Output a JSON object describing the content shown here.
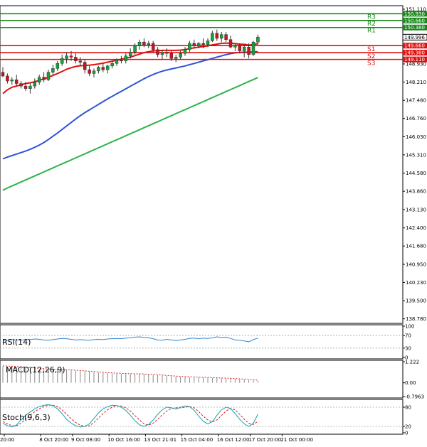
{
  "chart_data": [
    {
      "type": "candlestick",
      "title": "",
      "price_ticks": [
        "151.110",
        "150.380",
        "149.660",
        "148.930",
        "148.210",
        "147.480",
        "146.760",
        "146.030",
        "145.310",
        "144.580",
        "143.860",
        "143.130",
        "142.400",
        "141.680",
        "140.950",
        "140.230",
        "139.500",
        "138.780"
      ],
      "ylim": [
        138.6,
        151.25
      ],
      "current_price": "149.996",
      "x_tick_labels": [
        "20:00",
        "8 Oct 20:00",
        "9 Oct 08:00",
        "10 Oct 16:00",
        "13 Oct 21:01",
        "15 Oct 04:00",
        "16 Oct 12:00",
        "17 Oct 20:00",
        "21 Oct 00:00"
      ],
      "pivot_levels": [
        {
          "name": "R3",
          "value": 150.93,
          "label": "150.930",
          "color": "#1a8a1a"
        },
        {
          "name": "R2",
          "value": 150.66,
          "label": "150.660",
          "color": "#1a8a1a"
        },
        {
          "name": "R1",
          "value": 150.38,
          "label": "150.380",
          "color": "#1a8a1a"
        },
        {
          "name": "S1",
          "value": 149.66,
          "label": "149.660",
          "color": "#e01010"
        },
        {
          "name": "S2",
          "value": 149.38,
          "label": "149.380",
          "color": "#e01010"
        },
        {
          "name": "S3",
          "value": 149.11,
          "label": "149.110",
          "color": "#e01010"
        }
      ],
      "candles": [
        {
          "o": 148.6,
          "h": 148.8,
          "l": 148.4,
          "c": 148.45
        },
        {
          "o": 148.45,
          "h": 148.55,
          "l": 148.15,
          "c": 148.25
        },
        {
          "o": 148.25,
          "h": 148.4,
          "l": 148.1,
          "c": 148.3
        },
        {
          "o": 148.3,
          "h": 148.5,
          "l": 148.05,
          "c": 148.15
        },
        {
          "o": 148.15,
          "h": 148.25,
          "l": 147.95,
          "c": 148.05
        },
        {
          "o": 148.05,
          "h": 148.2,
          "l": 147.85,
          "c": 147.95
        },
        {
          "o": 147.95,
          "h": 148.15,
          "l": 147.75,
          "c": 148.05
        },
        {
          "o": 148.05,
          "h": 148.35,
          "l": 147.95,
          "c": 148.2
        },
        {
          "o": 148.2,
          "h": 148.5,
          "l": 148.1,
          "c": 148.4
        },
        {
          "o": 148.4,
          "h": 148.6,
          "l": 148.2,
          "c": 148.3
        },
        {
          "o": 148.3,
          "h": 148.7,
          "l": 148.25,
          "c": 148.6
        },
        {
          "o": 148.6,
          "h": 148.9,
          "l": 148.5,
          "c": 148.75
        },
        {
          "o": 148.75,
          "h": 149.05,
          "l": 148.65,
          "c": 148.95
        },
        {
          "o": 148.95,
          "h": 149.3,
          "l": 148.85,
          "c": 149.15
        },
        {
          "o": 149.15,
          "h": 149.4,
          "l": 148.95,
          "c": 149.25
        },
        {
          "o": 149.25,
          "h": 149.45,
          "l": 149.05,
          "c": 149.2
        },
        {
          "o": 149.2,
          "h": 149.35,
          "l": 148.95,
          "c": 149.05
        },
        {
          "o": 149.05,
          "h": 149.2,
          "l": 148.85,
          "c": 149.0
        },
        {
          "o": 149.0,
          "h": 149.1,
          "l": 148.55,
          "c": 148.7
        },
        {
          "o": 148.7,
          "h": 148.85,
          "l": 148.45,
          "c": 148.55
        },
        {
          "o": 148.55,
          "h": 148.75,
          "l": 148.4,
          "c": 148.65
        },
        {
          "o": 148.65,
          "h": 148.85,
          "l": 148.55,
          "c": 148.8
        },
        {
          "o": 148.8,
          "h": 148.95,
          "l": 148.6,
          "c": 148.7
        },
        {
          "o": 148.7,
          "h": 148.9,
          "l": 148.55,
          "c": 148.85
        },
        {
          "o": 148.85,
          "h": 149.05,
          "l": 148.75,
          "c": 148.95
        },
        {
          "o": 148.95,
          "h": 149.15,
          "l": 148.85,
          "c": 149.1
        },
        {
          "o": 149.1,
          "h": 149.25,
          "l": 148.95,
          "c": 149.05
        },
        {
          "o": 149.05,
          "h": 149.35,
          "l": 148.95,
          "c": 149.25
        },
        {
          "o": 149.25,
          "h": 149.55,
          "l": 149.15,
          "c": 149.4
        },
        {
          "o": 149.4,
          "h": 149.75,
          "l": 149.3,
          "c": 149.65
        },
        {
          "o": 149.65,
          "h": 149.9,
          "l": 149.5,
          "c": 149.8
        },
        {
          "o": 149.8,
          "h": 149.95,
          "l": 149.6,
          "c": 149.7
        },
        {
          "o": 149.7,
          "h": 149.85,
          "l": 149.55,
          "c": 149.75
        },
        {
          "o": 149.75,
          "h": 149.85,
          "l": 149.4,
          "c": 149.5
        },
        {
          "o": 149.5,
          "h": 149.6,
          "l": 149.2,
          "c": 149.3
        },
        {
          "o": 149.3,
          "h": 149.5,
          "l": 149.1,
          "c": 149.4
        },
        {
          "o": 149.4,
          "h": 149.55,
          "l": 149.2,
          "c": 149.35
        },
        {
          "o": 149.35,
          "h": 149.45,
          "l": 149.05,
          "c": 149.15
        },
        {
          "o": 149.15,
          "h": 149.3,
          "l": 149.0,
          "c": 149.2
        },
        {
          "o": 149.2,
          "h": 149.45,
          "l": 149.1,
          "c": 149.35
        },
        {
          "o": 149.35,
          "h": 149.6,
          "l": 149.25,
          "c": 149.5
        },
        {
          "o": 149.5,
          "h": 149.85,
          "l": 149.4,
          "c": 149.75
        },
        {
          "o": 149.75,
          "h": 149.9,
          "l": 149.55,
          "c": 149.65
        },
        {
          "o": 149.65,
          "h": 149.8,
          "l": 149.55,
          "c": 149.75
        },
        {
          "o": 149.75,
          "h": 149.95,
          "l": 149.55,
          "c": 149.7
        },
        {
          "o": 149.7,
          "h": 149.95,
          "l": 149.6,
          "c": 149.85
        },
        {
          "o": 149.85,
          "h": 150.25,
          "l": 149.8,
          "c": 150.15
        },
        {
          "o": 150.15,
          "h": 150.3,
          "l": 149.85,
          "c": 149.95
        },
        {
          "o": 149.95,
          "h": 150.2,
          "l": 149.8,
          "c": 150.1
        },
        {
          "o": 150.1,
          "h": 150.2,
          "l": 149.8,
          "c": 149.9
        },
        {
          "o": 149.9,
          "h": 150.05,
          "l": 149.55,
          "c": 149.6
        },
        {
          "o": 149.6,
          "h": 149.75,
          "l": 149.45,
          "c": 149.65
        },
        {
          "o": 149.65,
          "h": 149.75,
          "l": 149.35,
          "c": 149.45
        },
        {
          "o": 149.45,
          "h": 149.7,
          "l": 149.2,
          "c": 149.6
        },
        {
          "o": 149.6,
          "h": 149.75,
          "l": 149.15,
          "c": 149.3
        },
        {
          "o": 149.3,
          "h": 149.85,
          "l": 149.25,
          "c": 149.8
        },
        {
          "o": 149.8,
          "h": 150.1,
          "l": 149.7,
          "c": 150.0
        }
      ],
      "ma_fast": [
        147.75,
        147.9,
        148.0,
        148.05,
        148.1,
        148.15,
        148.18,
        148.22,
        148.28,
        148.33,
        148.4,
        148.47,
        148.55,
        148.63,
        148.72,
        148.78,
        148.83,
        148.86,
        148.87,
        148.88,
        148.9,
        148.93,
        148.96,
        149.0,
        149.04,
        149.08,
        149.12,
        149.16,
        149.2,
        149.26,
        149.32,
        149.38,
        149.42,
        149.45,
        149.46,
        149.47,
        149.47,
        149.47,
        149.47,
        149.48,
        149.5,
        149.54,
        149.57,
        149.6,
        149.62,
        149.65,
        149.69,
        149.72,
        149.75,
        149.76,
        149.76,
        149.74,
        149.72,
        149.71,
        149.68,
        149.7,
        149.74
      ],
      "ma_mid": [
        145.15,
        145.22,
        145.28,
        145.34,
        145.4,
        145.46,
        145.53,
        145.61,
        145.7,
        145.8,
        145.92,
        146.05,
        146.18,
        146.32,
        146.46,
        146.6,
        146.74,
        146.87,
        146.99,
        147.1,
        147.21,
        147.32,
        147.43,
        147.54,
        147.64,
        147.74,
        147.84,
        147.94,
        148.04,
        148.14,
        148.24,
        148.34,
        148.43,
        148.51,
        148.58,
        148.64,
        148.69,
        148.73,
        148.77,
        148.81,
        148.85,
        148.9,
        148.95,
        149.0,
        149.05,
        149.1,
        149.15,
        149.2,
        149.25,
        149.3,
        149.34,
        149.37,
        149.39,
        149.4,
        149.4,
        149.41,
        149.42
      ],
      "ma_slow": [
        143.9,
        143.99,
        144.07,
        144.15,
        144.23,
        144.31,
        144.39,
        144.47,
        144.55,
        144.63,
        144.71,
        144.79,
        144.87,
        144.95,
        145.03,
        145.11,
        145.19,
        145.27,
        145.35,
        145.43,
        145.51,
        145.59,
        145.67,
        145.75,
        145.83,
        145.91,
        145.99,
        146.07,
        146.15,
        146.23,
        146.31,
        146.39,
        146.47,
        146.55,
        146.63,
        146.71,
        146.79,
        146.87,
        146.95,
        147.03,
        147.11,
        147.19,
        147.27,
        147.35,
        147.43,
        147.51,
        147.59,
        147.67,
        147.75,
        147.83,
        147.91,
        147.99,
        148.07,
        148.15,
        148.23,
        148.31,
        148.39
      ]
    },
    {
      "type": "line",
      "name": "RSI(14)",
      "ylim": [
        0,
        100
      ],
      "ticks": [
        "100",
        "70",
        "30",
        "0"
      ],
      "tick_values": [
        100,
        70,
        30,
        0
      ],
      "levels": [
        70,
        30
      ],
      "values": [
        56,
        55,
        57,
        56,
        55,
        58,
        57,
        59,
        58,
        56,
        55,
        57,
        59,
        61,
        60,
        58,
        56,
        57,
        56,
        55,
        57,
        58,
        57,
        59,
        60,
        61,
        60,
        62,
        63,
        65,
        66,
        64,
        63,
        60,
        56,
        55,
        58,
        56,
        54,
        56,
        58,
        61,
        62,
        60,
        62,
        61,
        63,
        66,
        64,
        65,
        61,
        56,
        55,
        53,
        50,
        57,
        62
      ]
    },
    {
      "type": "bar",
      "name": "MACD(12,26,9)",
      "ylim": [
        -0.7963,
        1.222
      ],
      "ticks": [
        "1.222",
        "0.00",
        "-0.7963"
      ],
      "tick_values": [
        1.222,
        0.0,
        -0.7963
      ],
      "histogram": [
        0.95,
        0.93,
        0.92,
        0.9,
        0.88,
        0.86,
        0.84,
        0.82,
        0.8,
        0.79,
        0.78,
        0.77,
        0.76,
        0.75,
        0.74,
        0.72,
        0.7,
        0.68,
        0.66,
        0.64,
        0.62,
        0.6,
        0.58,
        0.56,
        0.54,
        0.53,
        0.52,
        0.51,
        0.5,
        0.5,
        0.5,
        0.49,
        0.48,
        0.46,
        0.44,
        0.42,
        0.4,
        0.38,
        0.36,
        0.34,
        0.33,
        0.32,
        0.31,
        0.3,
        0.29,
        0.28,
        0.28,
        0.27,
        0.26,
        0.25,
        0.24,
        0.22,
        0.2,
        0.18,
        0.16,
        0.14,
        0.12
      ],
      "signal": [
        0.98,
        0.97,
        0.96,
        0.94,
        0.92,
        0.9,
        0.88,
        0.86,
        0.84,
        0.82,
        0.8,
        0.79,
        0.78,
        0.77,
        0.76,
        0.75,
        0.73,
        0.71,
        0.69,
        0.67,
        0.65,
        0.63,
        0.61,
        0.59,
        0.57,
        0.56,
        0.55,
        0.54,
        0.53,
        0.52,
        0.52,
        0.51,
        0.5,
        0.49,
        0.47,
        0.45,
        0.43,
        0.41,
        0.39,
        0.37,
        0.36,
        0.35,
        0.34,
        0.33,
        0.32,
        0.31,
        0.3,
        0.29,
        0.28,
        0.27,
        0.26,
        0.25,
        0.23,
        0.21,
        0.19,
        0.17,
        0.15
      ]
    },
    {
      "type": "line",
      "name": "Stoch(9,6,3)",
      "ylim": [
        0,
        100
      ],
      "ticks": [
        "80",
        "20",
        "0"
      ],
      "tick_values": [
        80,
        20,
        0
      ],
      "levels": [
        80,
        20
      ],
      "k": [
        30,
        22,
        18,
        25,
        40,
        55,
        65,
        75,
        82,
        86,
        88,
        85,
        75,
        60,
        42,
        30,
        22,
        18,
        20,
        28,
        45,
        62,
        75,
        82,
        86,
        85,
        80,
        70,
        55,
        38,
        25,
        20,
        26,
        40,
        58,
        72,
        80,
        78,
        74,
        80,
        84,
        82,
        70,
        52,
        36,
        28,
        35,
        55,
        72,
        80,
        76,
        60,
        42,
        28,
        20,
        30,
        58
      ],
      "d": [
        35,
        28,
        22,
        22,
        30,
        42,
        55,
        66,
        75,
        82,
        86,
        86,
        82,
        72,
        58,
        44,
        32,
        24,
        20,
        22,
        32,
        46,
        60,
        72,
        80,
        84,
        84,
        78,
        68,
        54,
        40,
        28,
        24,
        30,
        42,
        56,
        68,
        76,
        78,
        78,
        80,
        82,
        78,
        66,
        52,
        40,
        34,
        40,
        54,
        68,
        76,
        72,
        58,
        42,
        30,
        26,
        36
      ]
    }
  ]
}
